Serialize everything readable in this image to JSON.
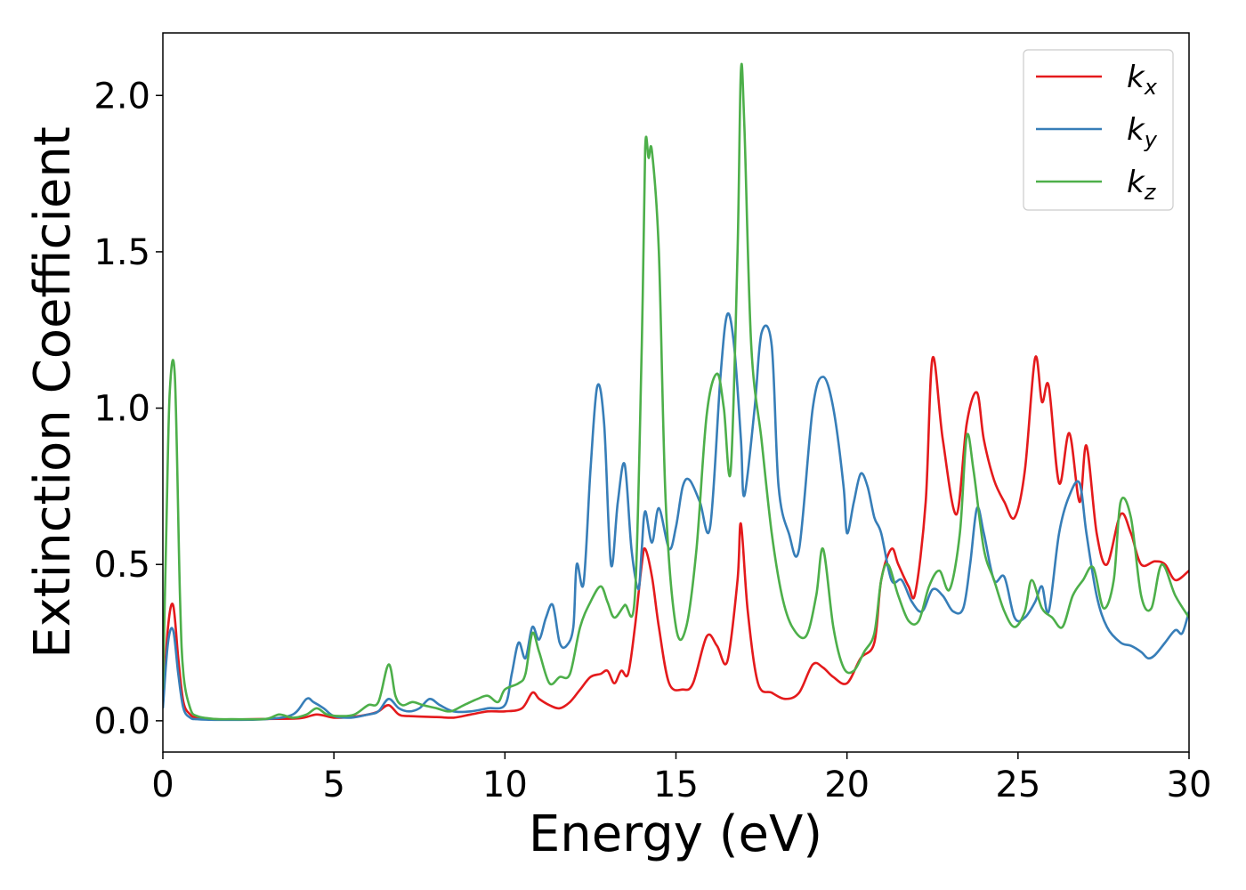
{
  "chart_data": {
    "type": "line",
    "xlabel": "Energy (eV)",
    "ylabel": "Extinction Coefficient",
    "xlim": [
      0,
      30
    ],
    "ylim": [
      -0.1,
      2.2
    ],
    "xticks": [
      0,
      5,
      10,
      15,
      20,
      25,
      30
    ],
    "xtick_labels": [
      "0",
      "5",
      "10",
      "15",
      "20",
      "25",
      "30"
    ],
    "yticks": [
      0.0,
      0.5,
      1.0,
      1.5,
      2.0
    ],
    "ytick_labels": [
      "0.0",
      "0.5",
      "1.0",
      "1.5",
      "2.0"
    ],
    "grid": false,
    "legend_position": "top-right",
    "series": [
      {
        "name": "k_x",
        "legend_base": "k",
        "legend_sub": "x",
        "color": "#e41a1c",
        "x": [
          0.0,
          0.15,
          0.3,
          0.45,
          0.6,
          0.8,
          1.0,
          1.5,
          2.0,
          3.0,
          4.0,
          4.5,
          5.0,
          5.5,
          6.0,
          6.3,
          6.6,
          6.9,
          7.2,
          8.0,
          8.5,
          9.0,
          9.5,
          10.0,
          10.5,
          10.8,
          11.0,
          11.3,
          11.6,
          11.9,
          12.2,
          12.5,
          12.8,
          13.0,
          13.2,
          13.4,
          13.6,
          13.8,
          14.0,
          14.1,
          14.3,
          14.5,
          14.8,
          15.2,
          15.5,
          15.9,
          16.2,
          16.5,
          16.8,
          16.9,
          17.1,
          17.4,
          17.8,
          18.2,
          18.6,
          19.0,
          19.3,
          19.6,
          20.0,
          20.4,
          20.8,
          21.0,
          21.3,
          21.5,
          21.8,
          22.0,
          22.3,
          22.5,
          22.8,
          23.2,
          23.5,
          23.8,
          24.0,
          24.3,
          24.6,
          24.9,
          25.2,
          25.5,
          25.7,
          25.9,
          26.2,
          26.5,
          26.8,
          27.0,
          27.3,
          27.6,
          28.0,
          28.3,
          28.6,
          29.0,
          29.3,
          29.6,
          30.0
        ],
        "y": [
          0.05,
          0.3,
          0.37,
          0.2,
          0.06,
          0.02,
          0.01,
          0.005,
          0.004,
          0.006,
          0.008,
          0.02,
          0.01,
          0.012,
          0.02,
          0.03,
          0.05,
          0.02,
          0.015,
          0.012,
          0.01,
          0.02,
          0.03,
          0.03,
          0.04,
          0.09,
          0.07,
          0.05,
          0.04,
          0.06,
          0.1,
          0.14,
          0.15,
          0.16,
          0.12,
          0.16,
          0.15,
          0.3,
          0.5,
          0.55,
          0.46,
          0.3,
          0.12,
          0.1,
          0.12,
          0.27,
          0.24,
          0.19,
          0.45,
          0.63,
          0.35,
          0.12,
          0.09,
          0.07,
          0.09,
          0.18,
          0.17,
          0.14,
          0.12,
          0.2,
          0.25,
          0.45,
          0.55,
          0.5,
          0.43,
          0.41,
          0.7,
          1.16,
          0.9,
          0.66,
          0.95,
          1.05,
          0.9,
          0.77,
          0.7,
          0.65,
          0.8,
          1.16,
          1.02,
          1.07,
          0.76,
          0.92,
          0.7,
          0.88,
          0.6,
          0.5,
          0.66,
          0.6,
          0.5,
          0.51,
          0.5,
          0.45,
          0.48
        ]
      },
      {
        "name": "k_y",
        "legend_base": "k",
        "legend_sub": "y",
        "color": "#377eb8",
        "x": [
          0.0,
          0.15,
          0.3,
          0.45,
          0.6,
          0.8,
          1.0,
          1.5,
          2.0,
          3.0,
          3.8,
          4.2,
          4.4,
          4.7,
          5.0,
          5.5,
          6.0,
          6.3,
          6.6,
          6.9,
          7.2,
          7.5,
          7.8,
          8.1,
          8.5,
          9.0,
          9.5,
          10.0,
          10.2,
          10.4,
          10.6,
          10.8,
          11.0,
          11.2,
          11.4,
          11.6,
          11.8,
          12.0,
          12.1,
          12.3,
          12.5,
          12.7,
          12.9,
          13.1,
          13.3,
          13.5,
          13.7,
          13.9,
          14.0,
          14.1,
          14.3,
          14.5,
          14.8,
          15.0,
          15.2,
          15.4,
          15.7,
          16.0,
          16.3,
          16.5,
          16.7,
          16.9,
          17.0,
          17.3,
          17.5,
          17.8,
          18.0,
          18.3,
          18.6,
          19.0,
          19.3,
          19.6,
          19.9,
          20.0,
          20.2,
          20.4,
          20.6,
          20.8,
          21.0,
          21.3,
          21.6,
          21.9,
          22.2,
          22.5,
          22.8,
          23.1,
          23.4,
          23.6,
          23.8,
          24.0,
          24.3,
          24.6,
          24.9,
          25.2,
          25.5,
          25.7,
          25.9,
          26.2,
          26.5,
          26.8,
          27.0,
          27.3,
          27.6,
          28.0,
          28.3,
          28.6,
          28.8,
          29.0,
          29.3,
          29.6,
          29.8,
          30.0
        ],
        "y": [
          0.04,
          0.25,
          0.29,
          0.15,
          0.04,
          0.01,
          0.005,
          0.003,
          0.003,
          0.005,
          0.02,
          0.07,
          0.06,
          0.04,
          0.015,
          0.01,
          0.02,
          0.03,
          0.07,
          0.04,
          0.03,
          0.04,
          0.07,
          0.05,
          0.03,
          0.03,
          0.04,
          0.05,
          0.15,
          0.25,
          0.2,
          0.3,
          0.26,
          0.33,
          0.37,
          0.25,
          0.24,
          0.3,
          0.5,
          0.44,
          0.8,
          1.07,
          0.95,
          0.5,
          0.7,
          0.82,
          0.55,
          0.42,
          0.55,
          0.67,
          0.57,
          0.68,
          0.55,
          0.62,
          0.75,
          0.77,
          0.7,
          0.62,
          1.1,
          1.3,
          1.2,
          0.9,
          0.72,
          1.0,
          1.24,
          1.2,
          0.75,
          0.6,
          0.55,
          1.0,
          1.1,
          1.0,
          0.75,
          0.6,
          0.7,
          0.79,
          0.75,
          0.65,
          0.6,
          0.45,
          0.45,
          0.38,
          0.35,
          0.42,
          0.4,
          0.35,
          0.36,
          0.5,
          0.68,
          0.6,
          0.45,
          0.46,
          0.33,
          0.33,
          0.38,
          0.43,
          0.35,
          0.6,
          0.72,
          0.76,
          0.6,
          0.4,
          0.3,
          0.25,
          0.24,
          0.22,
          0.2,
          0.21,
          0.25,
          0.29,
          0.28,
          0.35
        ]
      },
      {
        "name": "k_z",
        "legend_base": "k",
        "legend_sub": "z",
        "color": "#4daf4a",
        "x": [
          0.0,
          0.1,
          0.2,
          0.35,
          0.5,
          0.6,
          0.8,
          1.0,
          1.5,
          2.0,
          3.0,
          3.4,
          3.8,
          4.2,
          4.5,
          4.8,
          5.2,
          5.6,
          6.0,
          6.3,
          6.6,
          6.8,
          7.0,
          7.3,
          7.6,
          8.0,
          8.4,
          8.8,
          9.2,
          9.5,
          9.8,
          10.0,
          10.4,
          10.6,
          10.8,
          11.0,
          11.3,
          11.6,
          11.9,
          12.2,
          12.5,
          12.8,
          13.0,
          13.2,
          13.5,
          13.8,
          14.0,
          14.1,
          14.2,
          14.3,
          14.5,
          14.7,
          15.0,
          15.3,
          15.6,
          15.9,
          16.2,
          16.4,
          16.6,
          16.8,
          16.9,
          17.0,
          17.2,
          17.5,
          17.8,
          18.1,
          18.4,
          18.8,
          19.1,
          19.3,
          19.6,
          19.9,
          20.2,
          20.5,
          20.8,
          21.0,
          21.2,
          21.5,
          21.8,
          22.1,
          22.4,
          22.7,
          23.0,
          23.3,
          23.5,
          23.7,
          24.0,
          24.3,
          24.6,
          24.9,
          25.2,
          25.4,
          25.7,
          26.0,
          26.3,
          26.6,
          26.9,
          27.2,
          27.5,
          27.8,
          28.0,
          28.3,
          28.6,
          28.9,
          29.2,
          29.6,
          30.0
        ],
        "y": [
          0.1,
          0.6,
          1.05,
          1.1,
          0.4,
          0.15,
          0.04,
          0.015,
          0.006,
          0.005,
          0.006,
          0.02,
          0.01,
          0.02,
          0.04,
          0.02,
          0.015,
          0.02,
          0.05,
          0.06,
          0.18,
          0.08,
          0.05,
          0.06,
          0.05,
          0.04,
          0.03,
          0.05,
          0.07,
          0.08,
          0.06,
          0.1,
          0.12,
          0.15,
          0.28,
          0.22,
          0.12,
          0.14,
          0.15,
          0.3,
          0.38,
          0.43,
          0.38,
          0.33,
          0.37,
          0.4,
          1.2,
          1.83,
          1.8,
          1.82,
          1.5,
          0.7,
          0.3,
          0.3,
          0.55,
          0.98,
          1.11,
          1.0,
          0.8,
          1.5,
          2.08,
          1.9,
          1.2,
          0.9,
          0.6,
          0.4,
          0.3,
          0.27,
          0.4,
          0.55,
          0.3,
          0.17,
          0.16,
          0.22,
          0.28,
          0.45,
          0.5,
          0.4,
          0.32,
          0.32,
          0.43,
          0.48,
          0.42,
          0.6,
          0.91,
          0.8,
          0.55,
          0.45,
          0.35,
          0.3,
          0.35,
          0.45,
          0.36,
          0.33,
          0.3,
          0.4,
          0.45,
          0.49,
          0.36,
          0.45,
          0.7,
          0.65,
          0.4,
          0.36,
          0.5,
          0.4,
          0.33
        ]
      }
    ]
  }
}
